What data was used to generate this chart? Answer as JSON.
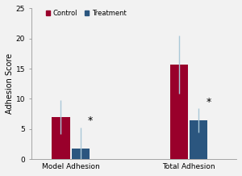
{
  "groups": [
    "Model Adhesion",
    "Total Adhesion"
  ],
  "control_values": [
    7.0,
    15.7
  ],
  "treatment_values": [
    1.8,
    6.4
  ],
  "control_errors": [
    2.8,
    4.8
  ],
  "treatment_errors": [
    3.5,
    2.0
  ],
  "control_color": "#99002B",
  "treatment_color": "#2B567F",
  "ylabel": "Adhesion Score",
  "ylim": [
    0,
    25
  ],
  "yticks": [
    0,
    5,
    10,
    15,
    20,
    25
  ],
  "legend_control": "Control",
  "legend_treatment": "Treatment",
  "bar_width": 0.22,
  "group_centers": [
    0.78,
    2.22
  ],
  "asterisk_fontsize": 9,
  "background_color": "#f2f2f2",
  "error_color": "#aac8d8",
  "xlim": [
    0.3,
    2.8
  ]
}
